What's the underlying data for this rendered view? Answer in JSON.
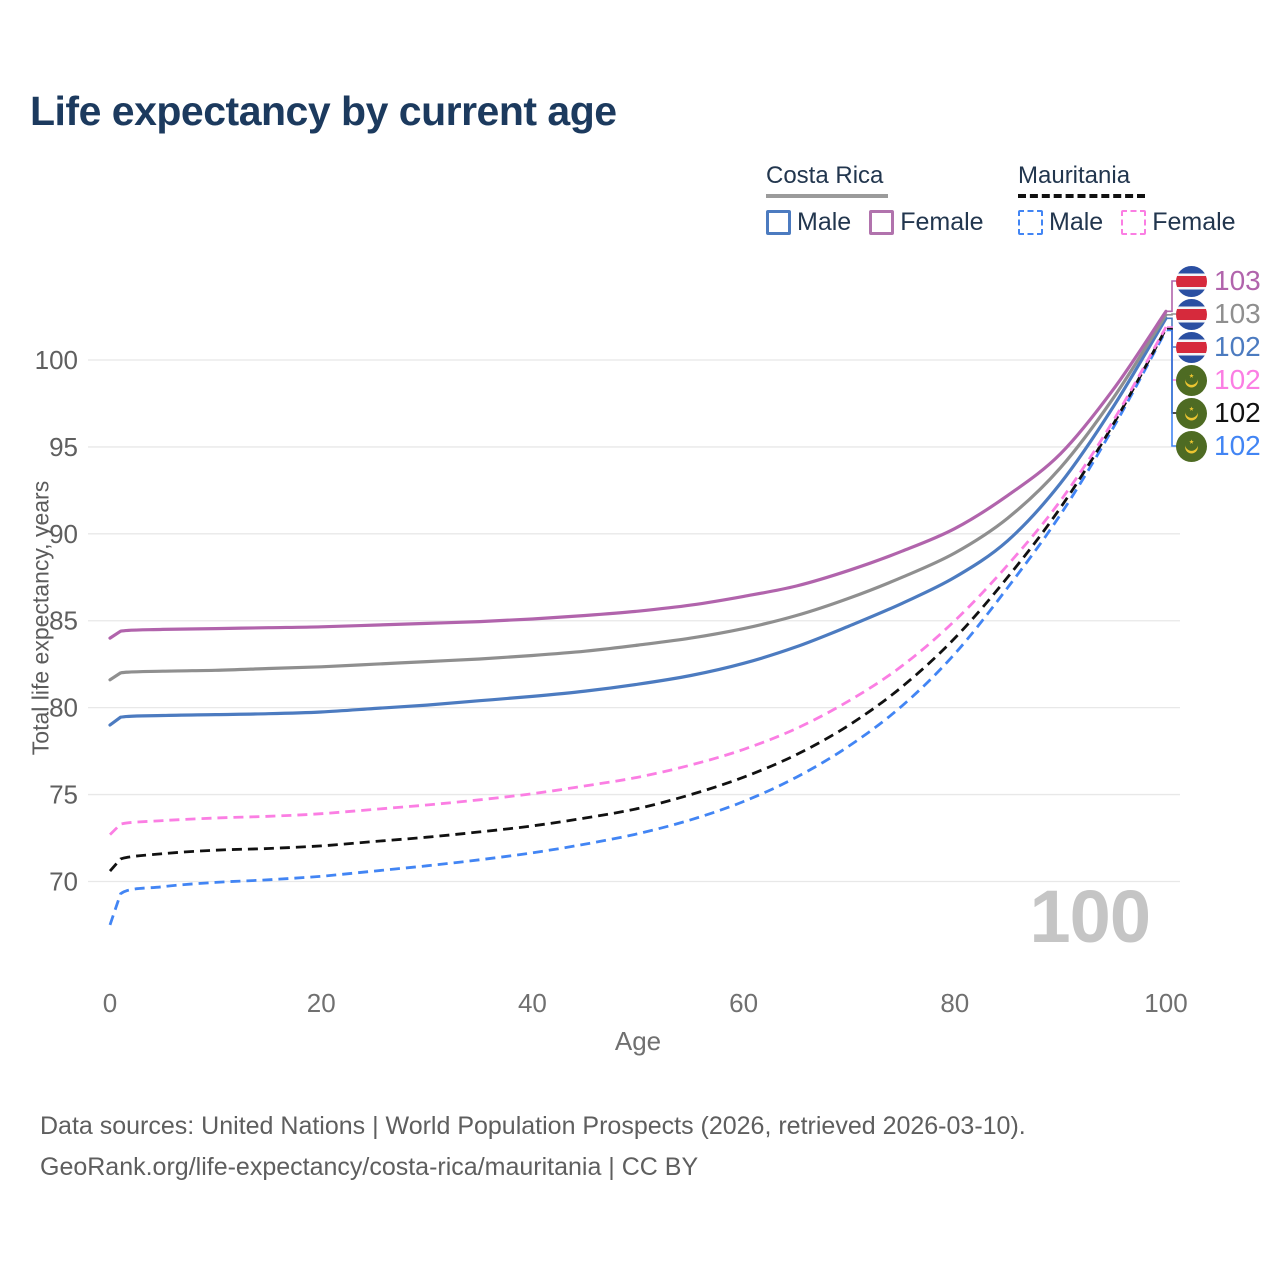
{
  "title": "Life expectancy by current age",
  "legend": {
    "groups": [
      {
        "label": "Costa Rica",
        "line_style": "solid",
        "rule_color": "#9b9b9b",
        "items": [
          {
            "label": "Male",
            "color": "#4c7bc0"
          },
          {
            "label": "Female",
            "color": "#b173ad"
          }
        ]
      },
      {
        "label": "Mauritania",
        "line_style": "dashed",
        "rule_color": "#111111",
        "items": [
          {
            "label": "Male",
            "color": "#4285f4"
          },
          {
            "label": "Female",
            "color": "#fb7ee3"
          }
        ]
      }
    ]
  },
  "chart_data": {
    "type": "line",
    "xlabel": "Age",
    "ylabel": "Total life expectancy, years",
    "x_ticks": [
      0,
      20,
      40,
      60,
      80,
      100
    ],
    "y_ticks": [
      70,
      75,
      80,
      85,
      90,
      95,
      100
    ],
    "xlim": [
      0,
      100
    ],
    "ylim": [
      66.5,
      104.5
    ],
    "grid": "horizontal",
    "age_counter": "100",
    "ages": [
      0,
      1,
      5,
      10,
      15,
      20,
      25,
      30,
      35,
      40,
      45,
      50,
      55,
      60,
      65,
      70,
      75,
      80,
      85,
      90,
      95,
      100
    ],
    "series": [
      {
        "name": "Costa Rica Female",
        "country": "Costa Rica",
        "sex": "Female",
        "color": "#b164ac",
        "line_style": "solid",
        "flag": "costa-rica",
        "end_label": "103",
        "values": [
          84.0,
          84.4,
          84.5,
          84.55,
          84.6,
          84.65,
          84.75,
          84.85,
          84.95,
          85.1,
          85.3,
          85.55,
          85.9,
          86.4,
          87.0,
          87.9,
          89.0,
          90.3,
          92.2,
          94.6,
          98.3,
          102.8
        ]
      },
      {
        "name": "Costa Rica Both sexes",
        "country": "Costa Rica",
        "sex": "Both",
        "color": "#8f8f8f",
        "line_style": "solid",
        "flag": "costa-rica",
        "end_label": "103",
        "values": [
          81.6,
          82.0,
          82.1,
          82.15,
          82.25,
          82.35,
          82.5,
          82.65,
          82.8,
          83.0,
          83.25,
          83.6,
          84.0,
          84.55,
          85.3,
          86.3,
          87.5,
          88.9,
          90.9,
          93.8,
          97.8,
          102.6
        ]
      },
      {
        "name": "Costa Rica Male",
        "country": "Costa Rica",
        "sex": "Male",
        "color": "#4c7bc0",
        "line_style": "solid",
        "flag": "costa-rica",
        "end_label": "102",
        "values": [
          79.0,
          79.45,
          79.55,
          79.6,
          79.65,
          79.75,
          79.95,
          80.15,
          80.4,
          80.65,
          80.95,
          81.35,
          81.85,
          82.55,
          83.5,
          84.7,
          86.0,
          87.5,
          89.6,
          92.9,
          97.3,
          102.4
        ]
      },
      {
        "name": "Mauritania Female",
        "country": "Mauritania",
        "sex": "Female",
        "color": "#fb7ee3",
        "line_style": "dashed",
        "flag": "mauritania",
        "end_label": "102",
        "values": [
          72.7,
          73.3,
          73.5,
          73.65,
          73.75,
          73.9,
          74.15,
          74.4,
          74.7,
          75.05,
          75.5,
          76.0,
          76.7,
          77.6,
          78.8,
          80.4,
          82.4,
          85.0,
          88.2,
          91.9,
          96.5,
          101.9
        ]
      },
      {
        "name": "Mauritania Both sexes",
        "country": "Mauritania",
        "sex": "Both",
        "color": "#111111",
        "line_style": "dashed",
        "flag": "mauritania",
        "end_label": "102",
        "values": [
          70.6,
          71.3,
          71.6,
          71.8,
          71.9,
          72.05,
          72.3,
          72.55,
          72.85,
          73.2,
          73.65,
          74.2,
          75.0,
          76.0,
          77.3,
          79.0,
          81.2,
          84.0,
          87.5,
          91.5,
          96.3,
          101.8
        ]
      },
      {
        "name": "Mauritania Male",
        "country": "Mauritania",
        "sex": "Male",
        "color": "#4285f4",
        "line_style": "dashed",
        "flag": "mauritania",
        "end_label": "102",
        "values": [
          67.5,
          69.3,
          69.7,
          69.95,
          70.1,
          70.3,
          70.6,
          70.9,
          71.25,
          71.65,
          72.15,
          72.75,
          73.55,
          74.6,
          76.0,
          77.8,
          80.1,
          83.1,
          86.9,
          91.1,
          96.1,
          101.7
        ]
      }
    ],
    "flag_colors": {
      "costa_rica": {
        "blue": "#2a4fa2",
        "white": "#f4f5f7",
        "red": "#d62a3c"
      },
      "mauritania": {
        "green": "#4e6b23",
        "gold": "#ecc531"
      }
    }
  },
  "footer": {
    "line1": "Data sources: United Nations | World Population Prospects (2026, retrieved 2026-03-10).",
    "line2": "GeoRank.org/life-expectancy/costa-rica/mauritania | CC BY"
  }
}
